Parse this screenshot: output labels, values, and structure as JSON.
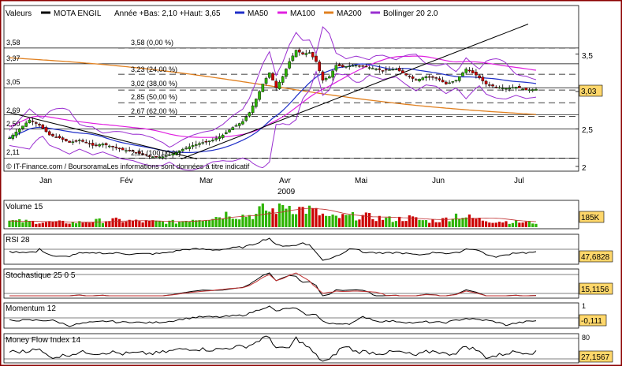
{
  "colors": {
    "frame": "#8b0000",
    "bullish": "#2db400",
    "bearish": "#cc0000",
    "ma50": "#1f2fc8",
    "ma100": "#e020e0",
    "ma200": "#e08020",
    "bollinger": "#9a2fd0",
    "value_box": "#ffd76b"
  },
  "header": {
    "legend_valeurs": "Valeurs",
    "legend_name": "MOTA ENGIL",
    "legend_range": "Année +Bas: 2,10 +Haut: 3,65",
    "legend_ma50": "MA50",
    "legend_ma100": "MA100",
    "legend_ma200": "MA200",
    "legend_boll": "Bollinger 20 2.0"
  },
  "main": {
    "credit": "© IT-Finance.com / BoursoramaLes informations sont données à titre indicatif",
    "year": "2009",
    "last_value": "3,03",
    "left_prices": [
      "3,58",
      "3,37",
      "3,05",
      "2,69",
      "2,50",
      "2,11"
    ],
    "fib_labels": [
      "3,58 (0,00 %)",
      "3,23 (24,00 %)",
      "3,02 (38,00 %)",
      "2,85 (50,00 %)",
      "2,67 (62,00 %)",
      "2,11 (100,00 %)"
    ]
  },
  "volume": {
    "label": "Volume 15",
    "value": "185K"
  },
  "rsi": {
    "label": "RSI 28",
    "value": "47,6828"
  },
  "stoch": {
    "label": "Stochastique 25 0 5",
    "value": "15,1156"
  },
  "momentum": {
    "label": "Momentum 12",
    "value": "-0,111",
    "tick_top": "1"
  },
  "mfi": {
    "label": "Money Flow Index 14",
    "value": "27,1567",
    "tick_top": "80"
  },
  "chart_data": {
    "type": "candlestick",
    "title": "MOTA ENGIL",
    "year": "2009",
    "x_labels": [
      "Jan",
      "Fév",
      "Mar",
      "Avr",
      "Mai",
      "Jun",
      "Jul"
    ],
    "y_ticks": [
      "3,5",
      "3",
      "2,5",
      "2"
    ],
    "ylim": [
      2.0,
      3.9
    ],
    "year_low": 2.1,
    "year_high": 3.65,
    "fibonacci": [
      {
        "level": 3.58,
        "pct": "0,00 %"
      },
      {
        "level": 3.23,
        "pct": "24,00 %"
      },
      {
        "level": 3.02,
        "pct": "38,00 %"
      },
      {
        "level": 2.85,
        "pct": "50,00 %"
      },
      {
        "level": 2.67,
        "pct": "62,00 %"
      },
      {
        "level": 2.11,
        "pct": "100,00 %"
      }
    ],
    "close_anchors": [
      [
        0,
        2.38
      ],
      [
        3,
        2.5
      ],
      [
        6,
        2.62
      ],
      [
        9,
        2.55
      ],
      [
        12,
        2.42
      ],
      [
        15,
        2.38
      ],
      [
        18,
        2.32
      ],
      [
        21,
        2.35
      ],
      [
        25,
        2.28
      ],
      [
        28,
        2.3
      ],
      [
        31,
        2.26
      ],
      [
        34,
        2.22
      ],
      [
        37,
        2.2
      ],
      [
        40,
        2.16
      ],
      [
        43,
        2.13
      ],
      [
        46,
        2.13
      ],
      [
        49,
        2.17
      ],
      [
        52,
        2.23
      ],
      [
        55,
        2.28
      ],
      [
        58,
        2.32
      ],
      [
        61,
        2.35
      ],
      [
        64,
        2.42
      ],
      [
        67,
        2.52
      ],
      [
        70,
        2.6
      ],
      [
        72,
        2.72
      ],
      [
        74,
        2.9
      ],
      [
        76,
        3.1
      ],
      [
        78,
        3.25
      ],
      [
        80,
        3.05
      ],
      [
        82,
        3.2
      ],
      [
        84,
        3.4
      ],
      [
        86,
        3.55
      ],
      [
        88,
        3.5
      ],
      [
        90,
        3.52
      ],
      [
        92,
        3.4
      ],
      [
        94,
        3.15
      ],
      [
        96,
        3.2
      ],
      [
        98,
        3.35
      ],
      [
        100,
        3.33
      ],
      [
        104,
        3.35
      ],
      [
        108,
        3.32
      ],
      [
        112,
        3.28
      ],
      [
        116,
        3.3
      ],
      [
        119,
        3.22
      ],
      [
        122,
        3.15
      ],
      [
        125,
        3.2
      ],
      [
        128,
        3.18
      ],
      [
        131,
        3.1
      ],
      [
        134,
        3.15
      ],
      [
        137,
        3.3
      ],
      [
        140,
        3.22
      ],
      [
        143,
        3.1
      ],
      [
        146,
        3.06
      ],
      [
        149,
        3.04
      ],
      [
        152,
        3.06
      ],
      [
        155,
        3.02
      ],
      [
        158,
        3.03
      ]
    ],
    "volume_anchors": [
      [
        0,
        12
      ],
      [
        10,
        10
      ],
      [
        20,
        9
      ],
      [
        30,
        14
      ],
      [
        40,
        11
      ],
      [
        50,
        10
      ],
      [
        55,
        16
      ],
      [
        62,
        20
      ],
      [
        66,
        28
      ],
      [
        68,
        22
      ],
      [
        74,
        24
      ],
      [
        76,
        40
      ],
      [
        78,
        30
      ],
      [
        83,
        45
      ],
      [
        86,
        36
      ],
      [
        90,
        34
      ],
      [
        96,
        18
      ],
      [
        105,
        22
      ],
      [
        115,
        15
      ],
      [
        120,
        18
      ],
      [
        125,
        12
      ],
      [
        130,
        14
      ],
      [
        134,
        24
      ],
      [
        140,
        16
      ],
      [
        145,
        12
      ],
      [
        152,
        10
      ],
      [
        158,
        9
      ]
    ],
    "indicators": {
      "rsi_28": 47.6828,
      "stochastic_25_0_5": 15.1156,
      "momentum_12": -0.111,
      "money_flow_index_14": 27.1567,
      "volume_15": "185K"
    }
  }
}
